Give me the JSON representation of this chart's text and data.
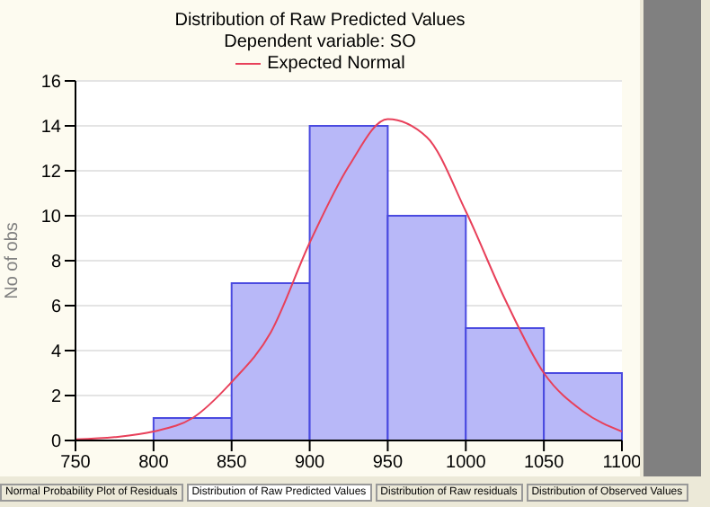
{
  "chart_data": {
    "type": "histogram",
    "title": "Distribution of Raw Predicted Values",
    "subtitle": "Dependent variable: SO",
    "ylabel": "No of obs",
    "bins": [
      800,
      850,
      900,
      950,
      1000,
      1050,
      1100
    ],
    "values": [
      1,
      7,
      14,
      10,
      5,
      3
    ],
    "color": "#b8b8f8",
    "series": [
      {
        "type": "line",
        "name": "Expected Normal",
        "color": "#e8405a",
        "x": [
          750,
          775,
          800,
          825,
          850,
          875,
          900,
          925,
          950,
          975,
          1000,
          1025,
          1050,
          1075,
          1100
        ],
        "values": [
          0.05,
          0.15,
          0.4,
          1.0,
          2.6,
          4.8,
          8.8,
          12.2,
          14.3,
          13.5,
          10.2,
          6.3,
          3.0,
          1.3,
          0.4
        ]
      }
    ],
    "xlim": [
      750,
      1100
    ],
    "xticks": [
      750,
      800,
      850,
      900,
      950,
      1000,
      1050,
      1100
    ],
    "ylim": [
      0,
      16
    ],
    "yticks": [
      0,
      2,
      4,
      6,
      8,
      10,
      12,
      14,
      16
    ],
    "grid": "y",
    "legend": "top",
    "annotations": [
      "Normal Probability Plot of Residuals",
      "Distribution of Raw Predicted Values",
      "Distribution of Raw residuals",
      "Distribution of Observed Values"
    ]
  }
}
